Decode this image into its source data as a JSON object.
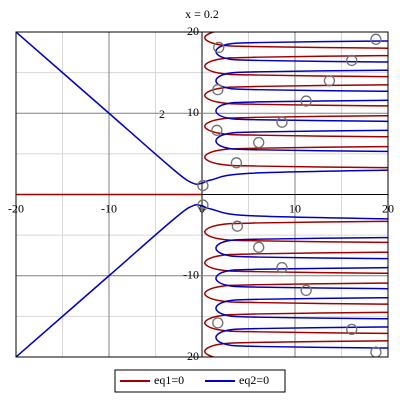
{
  "chart_data": {
    "type": "implicit",
    "title": "x = 0.2",
    "annotation": "2",
    "xlim": [
      -20,
      20
    ],
    "ylim": [
      -20,
      20
    ],
    "xticks": [
      -20,
      -10,
      0,
      10,
      20
    ],
    "yticks": [
      20,
      10,
      -10,
      -20
    ],
    "minor_grid": [
      -15,
      -5,
      5,
      15
    ],
    "series": [
      {
        "name": "eq1=0",
        "color": "#a00000",
        "curves": [
          {
            "x": [
              -20,
              0
            ],
            "y": [
              0,
              0
            ]
          },
          {
            "x": [
              20,
              6,
              1.8,
              0.3,
              1.8,
              6,
              20
            ],
            "y": [
              20.6,
              20.4,
              20.15,
              19.3,
              18.45,
              18.2,
              18.0
            ]
          },
          {
            "x": [
              20,
              6,
              1.8,
              0.3,
              1.8,
              6,
              20
            ],
            "y": [
              17.1,
              16.9,
              16.65,
              15.8,
              14.95,
              14.7,
              14.5
            ]
          },
          {
            "x": [
              20,
              6,
              1.8,
              0.3,
              1.8,
              6,
              20
            ],
            "y": [
              13.5,
              13.3,
              13.05,
              12.2,
              11.35,
              11.1,
              10.9
            ]
          },
          {
            "x": [
              20,
              6,
              1.8,
              0.3,
              1.8,
              6,
              20
            ],
            "y": [
              9.7,
              9.5,
              9.25,
              8.4,
              7.55,
              7.3,
              7.1
            ]
          },
          {
            "x": [
              20,
              6,
              1.8,
              0.3,
              1.8,
              6,
              20
            ],
            "y": [
              5.9,
              5.7,
              5.45,
              4.6,
              3.75,
              3.5,
              3.3
            ]
          },
          {
            "x": [
              20,
              6,
              1.8,
              0.3,
              1.8,
              6,
              20
            ],
            "y": [
              -3.3,
              -3.5,
              -3.75,
              -4.6,
              -5.45,
              -5.7,
              -5.9
            ]
          },
          {
            "x": [
              20,
              6,
              1.8,
              0.3,
              1.8,
              6,
              20
            ],
            "y": [
              -7.1,
              -7.3,
              -7.55,
              -8.4,
              -9.25,
              -9.5,
              -9.7
            ]
          },
          {
            "x": [
              20,
              6,
              1.8,
              0.3,
              1.8,
              6,
              20
            ],
            "y": [
              -10.9,
              -11.1,
              -11.35,
              -12.2,
              -13.05,
              -13.3,
              -13.5
            ]
          },
          {
            "x": [
              20,
              6,
              1.8,
              0.3,
              1.8,
              6,
              20
            ],
            "y": [
              -14.5,
              -14.7,
              -14.95,
              -15.8,
              -16.65,
              -16.9,
              -17.1
            ]
          },
          {
            "x": [
              20,
              6,
              1.8,
              0.3,
              1.8,
              6,
              20
            ],
            "y": [
              -18.0,
              -18.2,
              -18.45,
              -19.3,
              -20.15,
              -20.4,
              -20.6
            ]
          }
        ]
      },
      {
        "name": "eq2=0",
        "color": "#0000c0",
        "curves": [
          {
            "x": [
              -20,
              -10,
              -3,
              -1,
              0,
              1,
              5,
              20
            ],
            "y": [
              20,
              10,
              3,
              1.4,
              1.4,
              1.8,
              2.6,
              3.0
            ]
          },
          {
            "x": [
              -20,
              -10,
              -3,
              -1,
              0,
              1,
              5,
              20
            ],
            "y": [
              -20,
              -10,
              -3,
              -1.4,
              -1.4,
              -1.8,
              -2.6,
              -3.0
            ]
          },
          {
            "x": [
              20,
              6,
              2.6,
              1.5,
              2.6,
              6,
              20
            ],
            "y": [
              18.9,
              18.7,
              18.45,
              17.6,
              16.75,
              16.5,
              16.3
            ]
          },
          {
            "x": [
              20,
              6,
              2.6,
              1.5,
              2.6,
              6,
              20
            ],
            "y": [
              15.3,
              15.1,
              14.85,
              14.0,
              13.15,
              12.9,
              12.7
            ]
          },
          {
            "x": [
              20,
              6,
              2.6,
              1.5,
              2.6,
              6,
              20
            ],
            "y": [
              11.6,
              11.4,
              11.15,
              10.3,
              9.45,
              9.2,
              9.0
            ]
          },
          {
            "x": [
              20,
              6,
              2.6,
              1.5,
              2.6,
              6,
              20
            ],
            "y": [
              7.9,
              7.7,
              7.45,
              6.6,
              5.75,
              5.5,
              5.3
            ]
          },
          {
            "x": [
              20,
              6,
              2.6,
              1.5,
              2.6,
              6,
              20
            ],
            "y": [
              -5.3,
              -5.5,
              -5.75,
              -6.6,
              -7.45,
              -7.7,
              -7.9
            ]
          },
          {
            "x": [
              20,
              6,
              2.6,
              1.5,
              2.6,
              6,
              20
            ],
            "y": [
              -9.0,
              -9.2,
              -9.45,
              -10.3,
              -11.15,
              -11.4,
              -11.6
            ]
          },
          {
            "x": [
              20,
              6,
              2.6,
              1.5,
              2.6,
              6,
              20
            ],
            "y": [
              -12.7,
              -12.9,
              -13.15,
              -14.0,
              -14.85,
              -15.1,
              -15.3
            ]
          },
          {
            "x": [
              20,
              6,
              2.6,
              1.5,
              2.6,
              6,
              20
            ],
            "y": [
              -16.3,
              -16.5,
              -16.75,
              -17.6,
              -18.45,
              -18.7,
              -18.9
            ]
          }
        ]
      }
    ],
    "points": {
      "color": "#707070",
      "x": [
        1.8,
        16.1,
        13.7,
        1.7,
        11.2,
        8.6,
        1.6,
        6.1,
        3.7,
        0.1,
        0.1,
        3.8,
        6.1,
        8.6,
        11.2,
        1.7,
        16.1,
        18.7,
        18.7
      ],
      "y": [
        18.1,
        16.5,
        14,
        12.9,
        11.5,
        8.9,
        7.9,
        6.4,
        3.9,
        1.1,
        -1.3,
        -3.9,
        -6.5,
        -9,
        -11.8,
        -15.8,
        -16.6,
        -19.4,
        19.1
      ]
    }
  }
}
